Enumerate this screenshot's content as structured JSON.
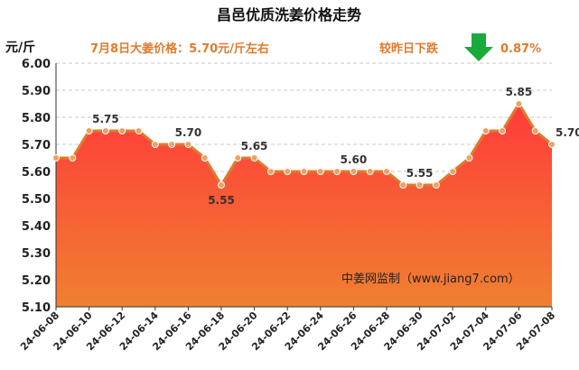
{
  "title": "昌邑优质洗姜价格走势",
  "unit_label": "元/斤",
  "annotation_price": "7月8日大姜价格：5.70元/斤左右",
  "annotation_change_label": "较昨日下跌",
  "annotation_change_value": "0.87%",
  "source": "中姜网监制（www.jiang7.com）",
  "colors": {
    "line": "#e07a2c",
    "marker_fill": "#f0a060",
    "fill_top": "#ff3b3b",
    "fill_bottom": "#f08030",
    "arrow": "#1aaa3c",
    "annotation": "#e07a2c"
  },
  "chart_data": {
    "type": "area",
    "title": "昌邑优质洗姜价格走势",
    "ylabel": "元/斤",
    "xlabel": "",
    "ylim": [
      5.1,
      6.0
    ],
    "yticks": [
      "5.10",
      "5.20",
      "5.30",
      "5.40",
      "5.50",
      "5.60",
      "5.70",
      "5.80",
      "5.90",
      "6.00"
    ],
    "grid": "horizontal dashed",
    "x": [
      "24-06-08",
      "24-06-09",
      "24-06-10",
      "24-06-11",
      "24-06-12",
      "24-06-13",
      "24-06-14",
      "24-06-15",
      "24-06-16",
      "24-06-17",
      "24-06-18",
      "24-06-19",
      "24-06-20",
      "24-06-21",
      "24-06-22",
      "24-06-23",
      "24-06-24",
      "24-06-25",
      "24-06-26",
      "24-06-27",
      "24-06-28",
      "24-06-29",
      "24-06-30",
      "24-07-01",
      "24-07-02",
      "24-07-03",
      "24-07-04",
      "24-07-05",
      "24-07-06",
      "24-07-07",
      "24-07-08"
    ],
    "x_tick_labels": [
      "24-06-08",
      "24-06-10",
      "24-06-12",
      "24-06-14",
      "24-06-16",
      "24-06-18",
      "24-06-20",
      "24-06-22",
      "24-06-24",
      "24-06-26",
      "24-06-28",
      "24-06-30",
      "24-07-02",
      "24-07-04",
      "24-07-06",
      "24-07-08"
    ],
    "values": [
      5.65,
      5.65,
      5.75,
      5.75,
      5.75,
      5.75,
      5.7,
      5.7,
      5.7,
      5.65,
      5.55,
      5.65,
      5.65,
      5.6,
      5.6,
      5.6,
      5.6,
      5.6,
      5.6,
      5.6,
      5.6,
      5.55,
      5.55,
      5.55,
      5.6,
      5.65,
      5.75,
      5.75,
      5.85,
      5.75,
      5.7
    ],
    "data_labels": [
      {
        "index": 3,
        "text": "5.75"
      },
      {
        "index": 8,
        "text": "5.70"
      },
      {
        "index": 10,
        "text": "5.55"
      },
      {
        "index": 12,
        "text": "5.65"
      },
      {
        "index": 18,
        "text": "5.60"
      },
      {
        "index": 22,
        "text": "5.55"
      },
      {
        "index": 28,
        "text": "5.85"
      },
      {
        "index": 30,
        "text": "5.70"
      }
    ]
  }
}
